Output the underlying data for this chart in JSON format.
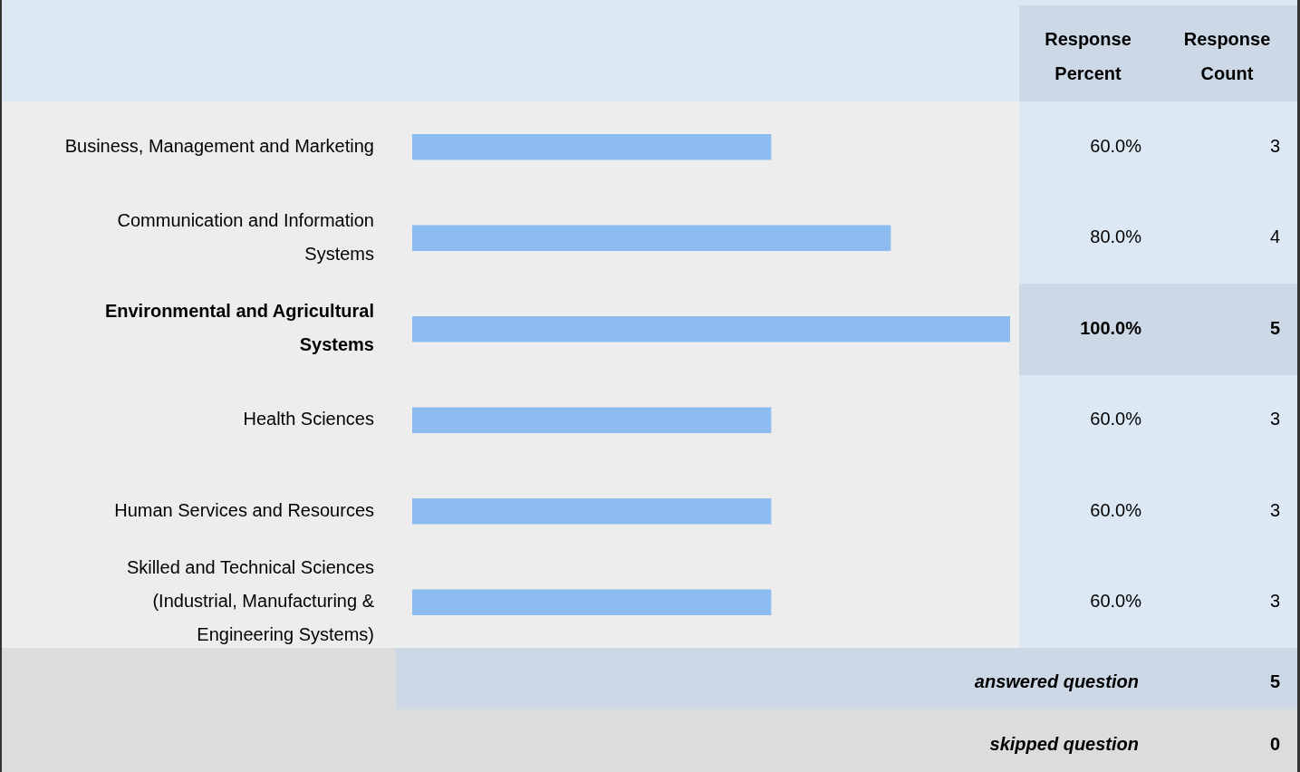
{
  "chart_data": {
    "type": "bar",
    "orientation": "horizontal",
    "categories": [
      "Business, Management and Marketing",
      "Communication and Information Systems",
      "Environmental and Agricultural Systems",
      "Health Sciences",
      "Human Services and Resources",
      "Skilled and Technical Sciences (Industrial, Manufacturing & Engineering Systems)"
    ],
    "values": [
      60,
      80,
      100,
      60,
      60,
      60
    ],
    "value_labels": [
      "60.0%",
      "80.0%",
      "100.0%",
      "60.0%",
      "60.0%",
      "60.0%"
    ],
    "color": "#8dbdf0",
    "xlim": [
      0,
      100
    ],
    "tick_labels": "y",
    "grid": false,
    "legend": false,
    "annotations": [
      "Response Percent",
      "Response Count",
      "answered question",
      "5",
      "skipped question",
      "0",
      "3",
      "4",
      "5",
      "3",
      "3",
      "3"
    ]
  }
}
